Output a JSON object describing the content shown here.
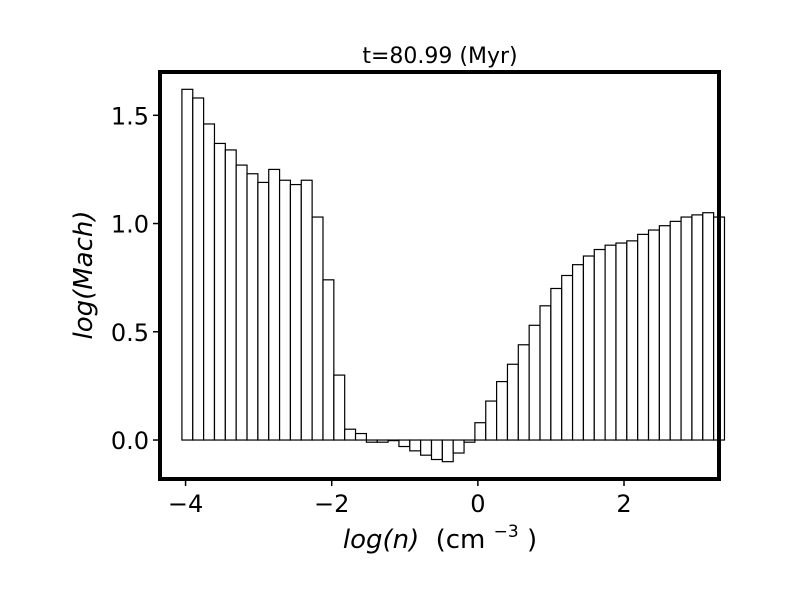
{
  "chart_data": {
    "type": "bar",
    "title": "t=80.99 (Myr)",
    "xlabel_italic": "log(n)",
    "xlabel_unit": "(cm",
    "xlabel_unit_exp": "−3",
    "xlabel_unit_close": ")",
    "ylabel": "log(Mach)",
    "xlim": [
      -4.35,
      3.3
    ],
    "ylim": [
      -0.18,
      1.7
    ],
    "xticks": [
      -4,
      -2,
      0,
      2
    ],
    "xtick_labels": [
      "−4",
      "−2",
      "0",
      "2"
    ],
    "yticks": [
      0.0,
      0.5,
      1.0,
      1.5
    ],
    "ytick_labels": [
      "0.0",
      "0.5",
      "1.0",
      "1.5"
    ],
    "bin_start": -4.05,
    "bin_width": 0.1485,
    "values": [
      1.62,
      1.58,
      1.46,
      1.37,
      1.34,
      1.27,
      1.23,
      1.19,
      1.25,
      1.2,
      1.18,
      1.2,
      1.03,
      0.74,
      0.3,
      0.05,
      0.03,
      -0.01,
      -0.01,
      0.0,
      -0.03,
      -0.05,
      -0.07,
      -0.09,
      -0.1,
      -0.06,
      -0.01,
      0.08,
      0.18,
      0.27,
      0.35,
      0.44,
      0.53,
      0.62,
      0.7,
      0.76,
      0.81,
      0.85,
      0.88,
      0.9,
      0.91,
      0.92,
      0.95,
      0.97,
      0.99,
      1.01,
      1.03,
      1.04,
      1.05,
      1.03
    ]
  }
}
